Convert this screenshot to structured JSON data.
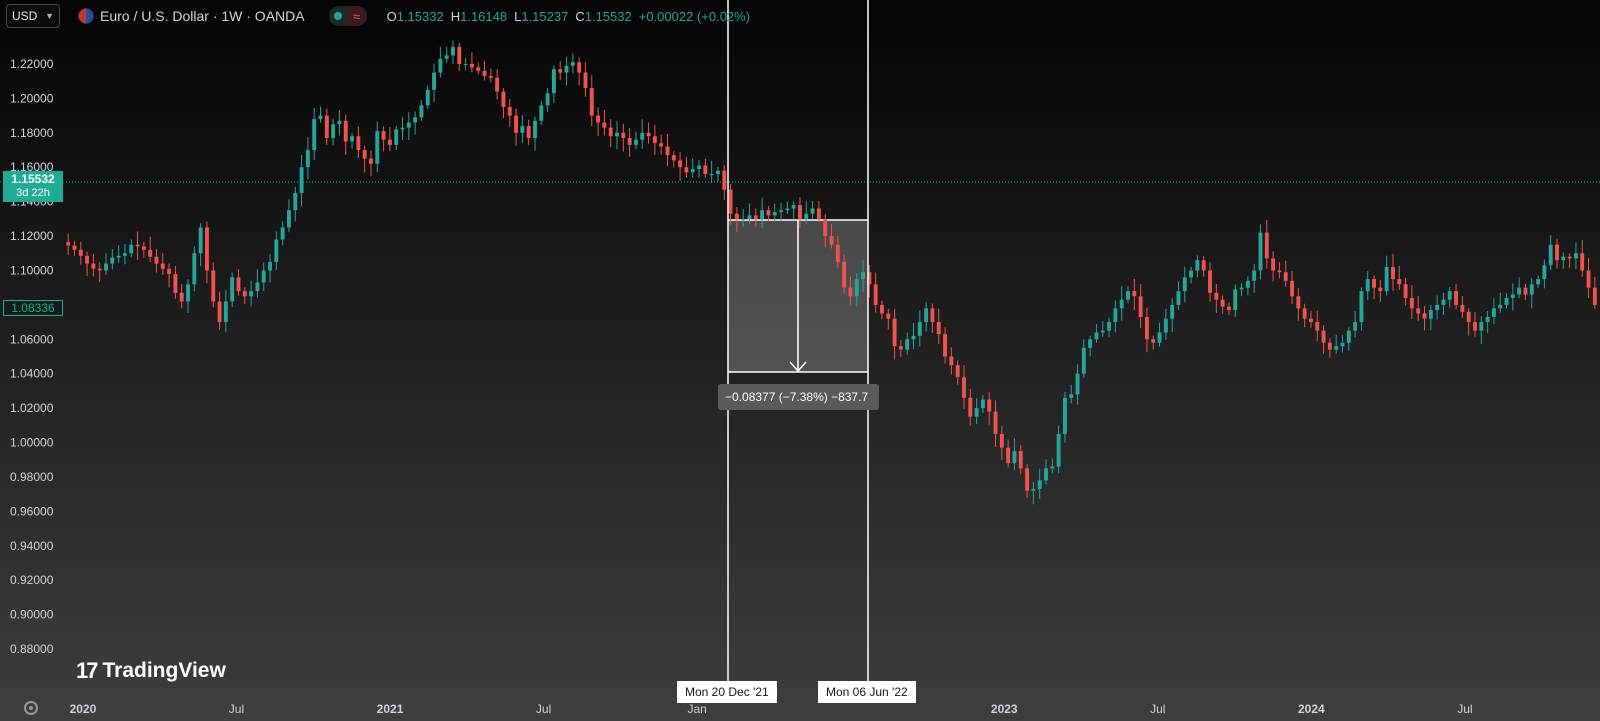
{
  "toolbar": {
    "currency": "USD",
    "symbol_title": "Euro / U.S. Dollar · 1W · OANDA",
    "ohlc": {
      "o_label": "O",
      "o_value": "1.15332",
      "h_label": "H",
      "h_value": "1.16148",
      "l_label": "L",
      "l_value": "1.15237",
      "c_label": "C",
      "c_value": "1.15532",
      "change": "+0.00022 (+0.02%)"
    }
  },
  "price_tags": {
    "last_price": "1.15532",
    "countdown": "3d 22h",
    "reference_price": "1.08336"
  },
  "measurement": {
    "label": "−0.08377 (−7.38%) −837.7",
    "start_date": "Mon 20 Dec '21",
    "end_date": "Mon 06 Jun '22",
    "start_price": 1.134,
    "end_price": 1.0502
  },
  "branding": {
    "logo_text": "TradingView"
  },
  "colors": {
    "up": "#26a69a",
    "down": "#ef5350",
    "accent": "#22ab94"
  },
  "icons": [
    "chevron-down-icon",
    "flag-icon",
    "status-dot-icon",
    "wave-icon",
    "settings-icon",
    "tradingview-logo-icon"
  ],
  "chart_data": {
    "type": "candlestick",
    "ylim": [
      0.87,
      1.25
    ],
    "y_ticks": [
      "1.22000",
      "1.20000",
      "1.18000",
      "1.16000",
      "1.14000",
      "1.12000",
      "1.10000",
      "1.08000",
      "1.06000",
      "1.04000",
      "1.02000",
      "1.00000",
      "0.98000",
      "0.96000",
      "0.94000",
      "0.92000",
      "0.90000",
      "0.88000"
    ],
    "x_ticks": [
      "2020",
      "Jul",
      "2021",
      "Jul",
      "Jan",
      "2023",
      "Jul",
      "2024",
      "Jul"
    ],
    "x_tick_months": [
      0,
      6,
      12,
      18,
      24,
      36,
      42,
      48,
      54
    ],
    "x_start_month": -0.7,
    "x_end_month": 59.2,
    "series": [
      {
        "close": [
          1.1145,
          1.112,
          1.1085,
          1.104,
          1.101,
          1.1,
          1.104,
          1.1075,
          1.1085,
          1.11,
          1.115,
          1.114,
          1.112,
          1.108,
          1.104,
          1.101,
          1.098,
          1.087,
          1.082,
          1.092,
          1.11,
          1.125,
          1.1,
          1.082,
          1.07,
          1.082,
          1.096,
          1.088,
          1.085,
          1.088,
          1.093,
          1.1,
          1.105,
          1.118,
          1.125,
          1.135,
          1.145,
          1.16,
          1.17,
          1.188,
          1.19,
          1.177,
          1.185,
          1.187,
          1.175,
          1.178,
          1.17,
          1.165,
          1.162,
          1.181,
          1.176,
          1.173,
          1.182,
          1.183,
          1.186,
          1.189,
          1.196,
          1.205,
          1.215,
          1.223,
          1.225,
          1.23,
          1.22,
          1.22,
          1.218,
          1.216,
          1.213,
          1.212,
          1.204,
          1.195,
          1.19,
          1.18,
          1.184,
          1.177,
          1.187,
          1.196,
          1.203,
          1.217,
          1.215,
          1.219,
          1.221,
          1.215,
          1.206,
          1.19,
          1.186,
          1.183,
          1.178,
          1.18,
          1.177,
          1.173,
          1.176,
          1.18,
          1.178,
          1.174,
          1.172,
          1.167,
          1.164,
          1.16,
          1.157,
          1.159,
          1.161,
          1.156,
          1.156,
          1.158,
          1.147,
          1.133,
          1.13,
          1.13,
          1.132,
          1.13,
          1.135,
          1.132,
          1.134,
          1.135,
          1.136,
          1.138,
          1.13,
          1.133,
          1.136,
          1.13,
          1.12,
          1.115,
          1.105,
          1.09,
          1.085,
          1.095,
          1.099,
          1.092,
          1.08,
          1.075,
          1.072,
          1.056,
          1.054,
          1.06,
          1.062,
          1.07,
          1.078,
          1.07,
          1.063,
          1.05,
          1.045,
          1.038,
          1.026,
          1.015,
          1.02,
          1.025,
          1.018,
          1.005,
          0.997,
          0.988,
          0.995,
          0.985,
          0.972,
          0.973,
          0.978,
          0.985,
          0.986,
          1.005,
          1.026,
          1.028,
          1.04,
          1.055,
          1.06,
          1.064,
          1.065,
          1.07,
          1.078,
          1.083,
          1.088,
          1.085,
          1.073,
          1.06,
          1.058,
          1.064,
          1.072,
          1.08,
          1.088,
          1.096,
          1.1,
          1.106,
          1.1,
          1.087,
          1.083,
          1.079,
          1.077,
          1.089,
          1.09,
          1.094,
          1.1,
          1.122,
          1.107,
          1.1,
          1.099,
          1.094,
          1.085,
          1.078,
          1.072,
          1.07,
          1.065,
          1.058,
          1.054,
          1.056,
          1.058,
          1.065,
          1.07,
          1.088,
          1.095,
          1.09,
          1.088,
          1.102,
          1.095,
          1.092,
          1.084,
          1.078,
          1.075,
          1.072,
          1.077,
          1.08,
          1.083,
          1.088,
          1.08,
          1.076,
          1.07,
          1.065,
          1.07,
          1.073,
          1.078,
          1.08,
          1.084,
          1.086,
          1.09,
          1.086,
          1.092,
          1.095,
          1.103,
          1.115,
          1.106,
          1.108,
          1.107,
          1.11,
          1.1,
          1.09,
          1.08
        ]
      }
    ]
  }
}
